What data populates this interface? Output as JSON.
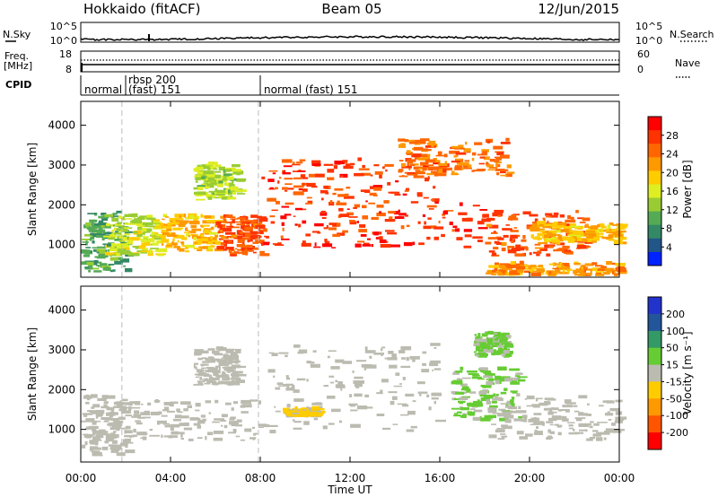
{
  "header": {
    "radar": "Hokkaido (fitACF)",
    "beam": "Beam 05",
    "date": "12/Jun/2015"
  },
  "sky_panel": {
    "left_label": "N.Sky",
    "right_label": "N.Search",
    "left_ticks": [
      "10^5",
      "10^0"
    ],
    "right_ticks": [
      "10^5",
      "10^0"
    ]
  },
  "freq_panel": {
    "left_label_1": "Freq.",
    "left_label_2": "[MHz]",
    "right_label": "Nave",
    "left_ticks": [
      "18",
      "8"
    ],
    "right_ticks": [
      "60",
      "0"
    ]
  },
  "cpid": {
    "label": "CPID",
    "segments": [
      "normal",
      "rbsp 200",
      "(fast) 151",
      "normal (fast) 151"
    ]
  },
  "power_colorbar": {
    "title": "Power [dB]",
    "ticks": [
      "28",
      "24",
      "20",
      "16",
      "12",
      "8",
      "4"
    ],
    "colors": [
      "#ff0000",
      "#ff3300",
      "#ff6600",
      "#ff9900",
      "#ffcc00",
      "#ddee22",
      "#99cc33",
      "#55aa55",
      "#338866",
      "#225588",
      "#0022ff"
    ]
  },
  "velocity_colorbar": {
    "title": "Velocity [m s⁻¹]",
    "ticks": [
      "200",
      "100",
      "50",
      "15",
      "-15",
      "-50",
      "-100",
      "-200"
    ],
    "colors": [
      "#2233cc",
      "#225599",
      "#339966",
      "#66cc33",
      "#bbbbb0",
      "#ffcc00",
      "#ff9900",
      "#ff5500",
      "#ff0000"
    ]
  },
  "slant_axis_label": "Slant Range [km]",
  "x_axis_label": "Time UT",
  "chart_data": [
    {
      "type": "heatmap",
      "title": "",
      "xlabel": "Time UT",
      "ylabel": "Slant Range [km]",
      "x_ticks": [
        "00:00",
        "04:00",
        "08:00",
        "12:00",
        "16:00",
        "20:00",
        "00:00"
      ],
      "y_ticks": [
        "1000",
        "2000",
        "3000",
        "4000"
      ],
      "xlim": [
        "00:00",
        "24:00"
      ],
      "ylim": [
        180,
        4600
      ],
      "colorbar": "Power [dB]",
      "mode_change_times": [
        "01:50",
        "07:55"
      ],
      "regions": [
        {
          "t0": 0.0,
          "t1": 2.0,
          "r0": 300,
          "r1": 1800,
          "value": 10
        },
        {
          "t0": 1.0,
          "t1": 3.5,
          "r0": 700,
          "r1": 1700,
          "value": 16
        },
        {
          "t0": 3.5,
          "t1": 6.0,
          "r0": 800,
          "r1": 1700,
          "value": 20
        },
        {
          "t0": 5.0,
          "t1": 7.0,
          "r0": 2100,
          "r1": 3000,
          "value": 14
        },
        {
          "t0": 6.0,
          "t1": 8.0,
          "r0": 700,
          "r1": 1700,
          "value": 26
        },
        {
          "t0": 8.0,
          "t1": 18.0,
          "r0": 900,
          "r1": 2000,
          "value": 28
        },
        {
          "t0": 8.0,
          "t1": 16.0,
          "r0": 2000,
          "r1": 3100,
          "value": 27
        },
        {
          "t0": 14.0,
          "t1": 19.0,
          "r0": 2700,
          "r1": 3600,
          "value": 24
        },
        {
          "t0": 18.0,
          "t1": 22.5,
          "r0": 700,
          "r1": 1800,
          "value": 26
        },
        {
          "t0": 20.0,
          "t1": 24.0,
          "r0": 1000,
          "r1": 1500,
          "value": 20
        },
        {
          "t0": 18.0,
          "t1": 24.0,
          "r0": 200,
          "r1": 500,
          "value": 22
        }
      ]
    },
    {
      "type": "heatmap",
      "title": "",
      "xlabel": "Time UT",
      "ylabel": "Slant Range [km]",
      "x_ticks": [
        "00:00",
        "04:00",
        "08:00",
        "12:00",
        "16:00",
        "20:00",
        "00:00"
      ],
      "y_ticks": [
        "1000",
        "2000",
        "3000",
        "4000"
      ],
      "xlim": [
        "00:00",
        "24:00"
      ],
      "ylim": [
        180,
        4600
      ],
      "colorbar": "Velocity [m s⁻¹]",
      "mode_change_times": [
        "01:50",
        "07:55"
      ],
      "regions": [
        {
          "t0": 0.0,
          "t1": 2.0,
          "r0": 300,
          "r1": 1800,
          "value": 0
        },
        {
          "t0": 1.0,
          "t1": 8.0,
          "r0": 700,
          "r1": 1700,
          "value": 0
        },
        {
          "t0": 5.0,
          "t1": 7.0,
          "r0": 2100,
          "r1": 3000,
          "value": 0
        },
        {
          "t0": 8.0,
          "t1": 16.0,
          "r0": 900,
          "r1": 3100,
          "value": 0
        },
        {
          "t0": 16.5,
          "t1": 19.5,
          "r0": 1200,
          "r1": 2500,
          "value": 30
        },
        {
          "t0": 17.5,
          "t1": 19.0,
          "r0": 2800,
          "r1": 3400,
          "value": 30
        },
        {
          "t0": 18.0,
          "t1": 24.0,
          "r0": 700,
          "r1": 1800,
          "value": 0
        },
        {
          "t0": 9.0,
          "t1": 10.5,
          "r0": 1300,
          "r1": 1500,
          "value": -30
        }
      ]
    }
  ]
}
